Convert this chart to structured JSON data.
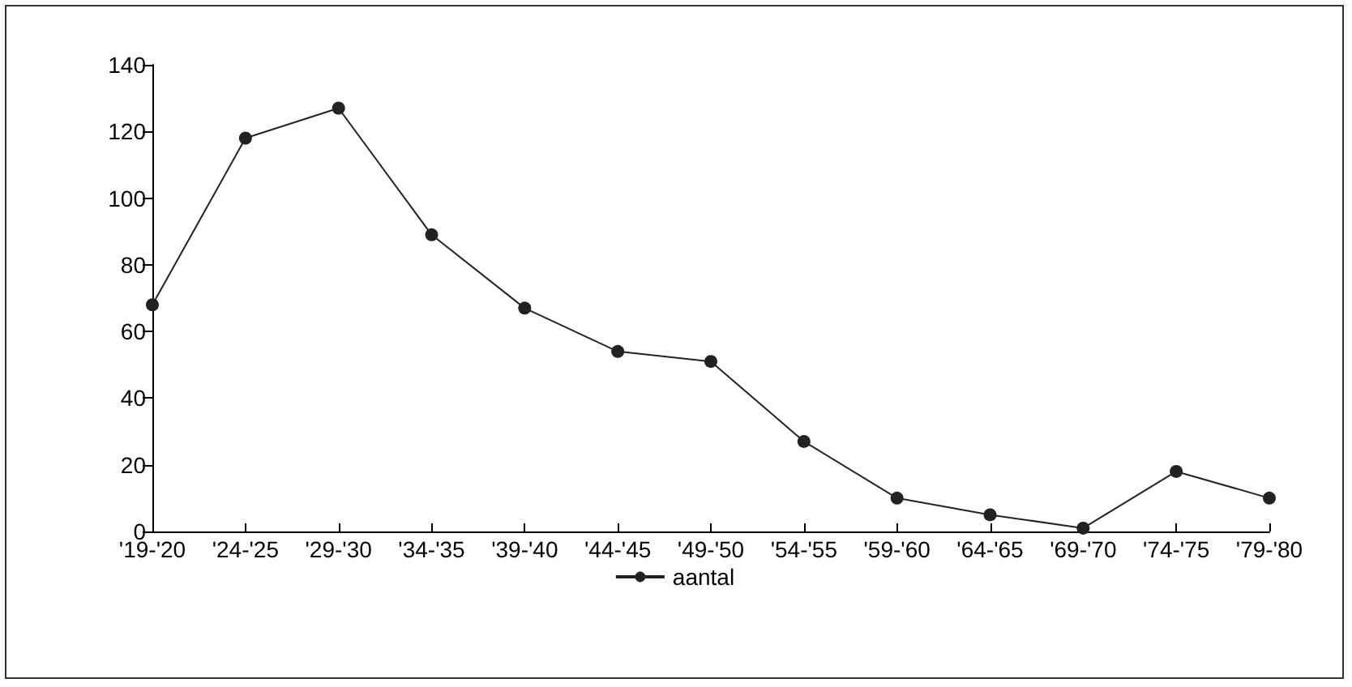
{
  "chart_data": {
    "type": "line",
    "categories": [
      "'19-'20",
      "'24-'25",
      "'29-'30",
      "'34-'35",
      "'39-'40",
      "'44-'45",
      "'49-'50",
      "'54-'55",
      "'59-'60",
      "'64-'65",
      "'69-'70",
      "'74-'75",
      "'79-'80"
    ],
    "series": [
      {
        "name": "aantal",
        "color": "#222222",
        "values": [
          68,
          118,
          127,
          89,
          67,
          54,
          51,
          27,
          10,
          5,
          1,
          18,
          10
        ]
      }
    ],
    "ylim": [
      0,
      140
    ],
    "yticks": [
      0,
      20,
      40,
      60,
      80,
      100,
      120,
      140
    ],
    "grid": false,
    "legend": "bottom",
    "marker": "circle",
    "line_style": "solid"
  }
}
